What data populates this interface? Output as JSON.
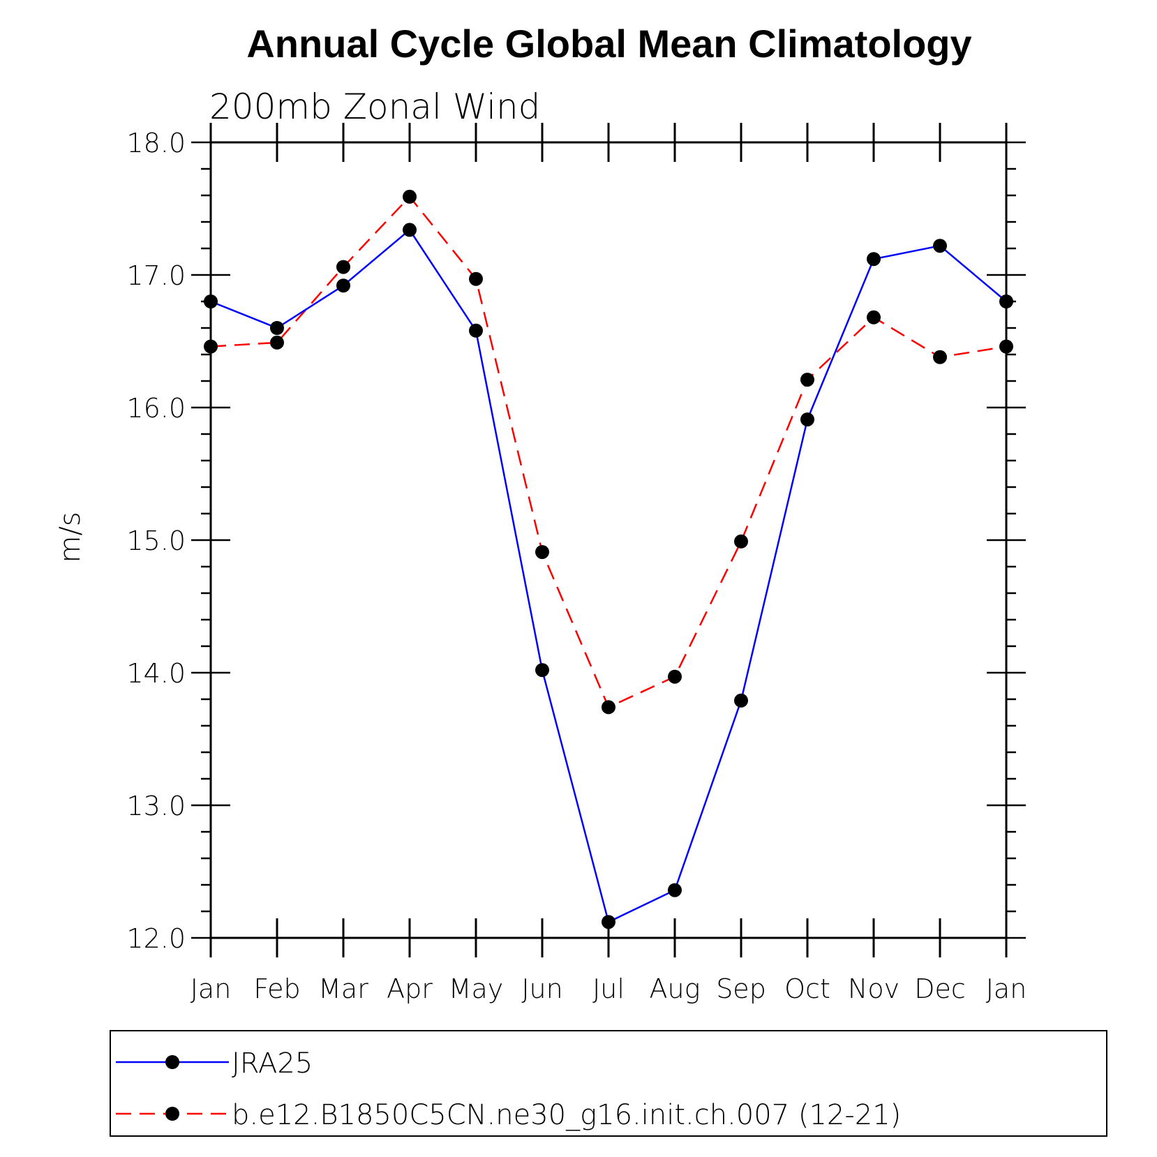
{
  "chart_data": {
    "type": "line",
    "title": "Annual Cycle Global Mean Climatology",
    "subtitle": "200mb Zonal Wind",
    "xlabel": "",
    "ylabel": "m/s",
    "categories": [
      "Jan",
      "Feb",
      "Mar",
      "Apr",
      "May",
      "Jun",
      "Jul",
      "Aug",
      "Sep",
      "Oct",
      "Nov",
      "Dec",
      "Jan"
    ],
    "ylim": [
      12.0,
      18.0
    ],
    "yticks": [
      "12.0",
      "13.0",
      "14.0",
      "15.0",
      "16.0",
      "17.0",
      "18.0"
    ],
    "grid": false,
    "legend_position": "bottom",
    "series": [
      {
        "name": "JRA25",
        "color": "#0000ff",
        "style": "solid",
        "marker": "filled-circle",
        "values": [
          16.8,
          16.6,
          16.92,
          17.34,
          16.58,
          14.02,
          12.12,
          12.36,
          13.79,
          15.91,
          17.12,
          17.22,
          16.8
        ]
      },
      {
        "name": "b.e12.B1850C5CN.ne30_g16.init.ch.007 (12-21)",
        "color": "#ff0000",
        "style": "dashed",
        "marker": "filled-circle",
        "values": [
          16.46,
          16.49,
          17.06,
          17.59,
          16.97,
          14.91,
          13.74,
          13.97,
          14.99,
          16.21,
          16.68,
          16.38,
          16.46
        ]
      }
    ]
  }
}
